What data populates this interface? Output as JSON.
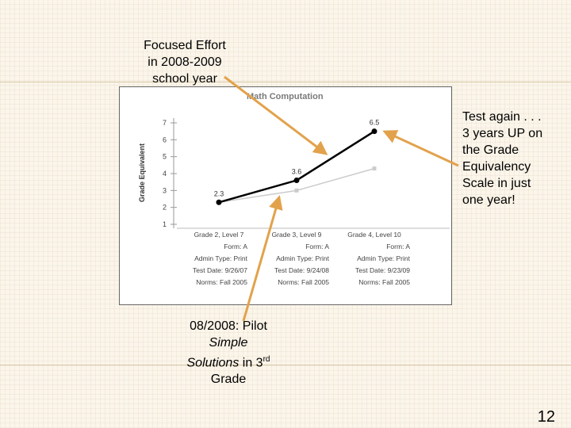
{
  "notes": {
    "focus": [
      "Focused Effort",
      "in 2008-2009",
      "school year"
    ],
    "test_again": [
      "Test again . . .",
      "3 years UP on",
      "the Grade",
      "Equivalency",
      "Scale in just",
      "one year!"
    ],
    "pilot": {
      "line1": "08/2008: Pilot",
      "line2": "Simple",
      "line3_italic": "Solutions",
      "line3_rest": " in 3",
      "line3_sup": "rd",
      "line4": "Grade"
    }
  },
  "slide_number": "12",
  "colors": {
    "arrow": "#e2a24c",
    "series_main": "#000000",
    "series_comparison": "#cccccc",
    "title": "#7a7a7a"
  },
  "chart_data": {
    "type": "line",
    "title": "Math Computation",
    "ylabel": "Grade Equivalent",
    "ylim": [
      1,
      7
    ],
    "yticks": [
      "1",
      "2",
      "3",
      "4",
      "5",
      "6",
      "7"
    ],
    "categories": [
      "Grade 2, Level 7",
      "Grade 3, Level 9",
      "Grade 4, Level 10"
    ],
    "series": [
      {
        "values": [
          2.3,
          3.6,
          6.5
        ],
        "labels": [
          "2.3",
          "3.6",
          "6.5"
        ]
      },
      {
        "values": [
          2.3,
          3.0,
          4.3
        ]
      }
    ],
    "details": [
      [
        "Grade 2, Level 7",
        "Form: A",
        "Admin Type: Print",
        "Test Date: 9/26/07",
        "Norms: Fall 2005"
      ],
      [
        "Grade 3, Level 9",
        "Form: A",
        "Admin Type: Print",
        "Test Date: 9/24/08",
        "Norms: Fall 2005"
      ],
      [
        "Grade 4, Level 10",
        "Form: A",
        "Admin Type: Print",
        "Test Date: 9/23/09",
        "Norms: Fall 2005"
      ]
    ]
  }
}
